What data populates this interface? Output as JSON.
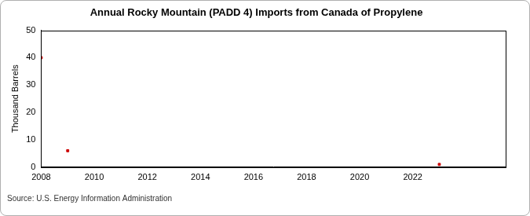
{
  "chart_data": {
    "type": "scatter",
    "title": "Annual Rocky Mountain (PADD 4) Imports from Canada of Propylene",
    "y_label": "Thousand Barrels",
    "source": "Source: U.S. Energy Information Administration",
    "x": [
      2008,
      2009,
      2023
    ],
    "values": [
      40,
      6,
      1
    ],
    "color": "#cc0000",
    "marker": "square",
    "xlim": [
      2008,
      2025.5
    ],
    "xticks": [
      2008,
      2010,
      2012,
      2014,
      2016,
      2018,
      2020,
      2022
    ],
    "ylim": [
      0,
      50
    ],
    "yticks": [
      0,
      10,
      20,
      30,
      40,
      50
    ],
    "grid": false
  }
}
